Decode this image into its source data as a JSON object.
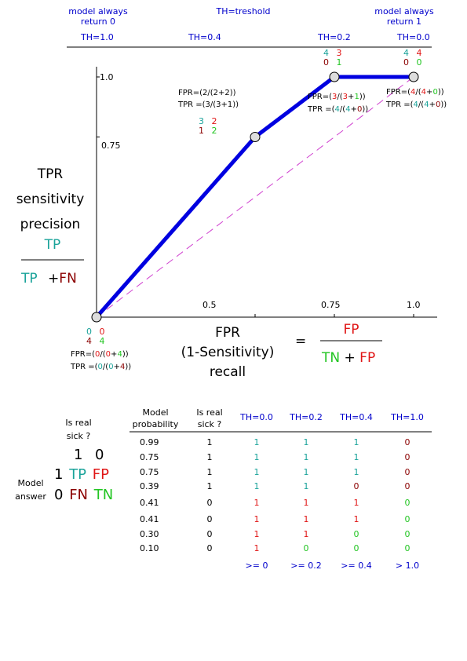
{
  "top": {
    "left_note": [
      "model always",
      "return 0"
    ],
    "right_note": [
      "model always",
      "return 1"
    ],
    "center_note": "TH=treshold",
    "thresholds": [
      "TH=1.0",
      "TH=0.4",
      "TH=0.2",
      "TH=0.0"
    ]
  },
  "colors": {
    "roc": "#0000e0",
    "diag": "#d040d0",
    "teal": "#1aa39a",
    "red": "#e01515",
    "green": "#22c522",
    "darkred": "#8b0000",
    "blue": "#0000cc"
  },
  "chart_data": {
    "type": "line",
    "xlabel": [
      "FPR",
      "(1-Sensitivity)",
      "recall"
    ],
    "ylabel": [
      "TPR",
      "sensitivity",
      "precision"
    ],
    "x_ticks": [
      "0.5",
      "0.75",
      "1.0"
    ],
    "y_ticks": [
      "1.0",
      "0.75"
    ],
    "xlim": [
      0,
      1
    ],
    "ylim": [
      0,
      1
    ],
    "series": [
      {
        "x": [
          0,
          0.5,
          0.75,
          1.0
        ],
        "y": [
          0,
          0.75,
          1.0,
          1.0
        ]
      }
    ],
    "diagonal": {
      "x": [
        0,
        1
      ],
      "y": [
        0,
        1
      ]
    }
  },
  "points": [
    {
      "counts": [
        "0",
        "0",
        "4",
        "4"
      ],
      "fpr": [
        "FPR=(",
        "0",
        "/(",
        "0",
        "+",
        "4",
        "))"
      ],
      "tpr": [
        "TPR =(",
        "0",
        "/(",
        "0",
        "+",
        "4",
        "))"
      ]
    },
    {
      "counts": [
        "3",
        "2",
        "1",
        "2"
      ],
      "fpr_text": "FPR=(2/(2+2))",
      "tpr_text": "TPR =(3/(3+1))"
    },
    {
      "counts": [
        "4",
        "3",
        "0",
        "1"
      ],
      "fpr": [
        "FPR=(",
        "3",
        "/(",
        "3",
        "+",
        "1",
        "))"
      ],
      "tpr": [
        "TPR =(",
        "4",
        "/(",
        "4",
        "+",
        "0",
        "))"
      ]
    },
    {
      "counts": [
        "4",
        "4",
        "0",
        "0"
      ],
      "fpr": [
        "FPR=(",
        "4",
        "/(",
        "4",
        "+",
        "0",
        "))"
      ],
      "tpr": [
        "TPR =(",
        "4",
        "/(",
        "4",
        "+",
        "0",
        "))"
      ]
    }
  ],
  "formulas": {
    "tpr_num": "TP",
    "tpr_den_a": "TP",
    "tpr_plus": "+",
    "tpr_den_b": "FN",
    "equals": "=",
    "fpr_num": "FP",
    "fpr_den_a": "TN",
    "fpr_plus": "+",
    "fpr_den_b": "FP"
  },
  "confusion": {
    "header": [
      "Is real",
      "sick ?"
    ],
    "cols": [
      "1",
      "0"
    ],
    "row_label": [
      "Model",
      "answer"
    ],
    "rows": [
      {
        "label": "1",
        "a": "TP",
        "b": "FP"
      },
      {
        "label": "0",
        "a": "FN",
        "b": "TN"
      }
    ]
  },
  "table": {
    "headers": [
      [
        "Model",
        "probability"
      ],
      [
        "Is real",
        "sick ?"
      ],
      [
        "TH=0.0"
      ],
      [
        "TH=0.2"
      ],
      [
        "TH=0.4"
      ],
      [
        "TH=1.0"
      ]
    ],
    "rows": [
      [
        "0.99",
        "1",
        "1",
        "1",
        "1",
        "0"
      ],
      [
        "0.75",
        "1",
        "1",
        "1",
        "1",
        "0"
      ],
      [
        "0.75",
        "1",
        "1",
        "1",
        "1",
        "0"
      ],
      [
        "0.39",
        "1",
        "1",
        "1",
        "0",
        "0"
      ],
      [
        "0.41",
        "0",
        "1",
        "1",
        "1",
        "0"
      ],
      [
        "0.41",
        "0",
        "1",
        "1",
        "1",
        "0"
      ],
      [
        "0.30",
        "0",
        "1",
        "1",
        "0",
        "0"
      ],
      [
        "0.10",
        "0",
        "1",
        "0",
        "0",
        "0"
      ]
    ],
    "footer": [
      ">= 0",
      ">= 0.2",
      ">= 0.4",
      "> 1.0"
    ]
  }
}
